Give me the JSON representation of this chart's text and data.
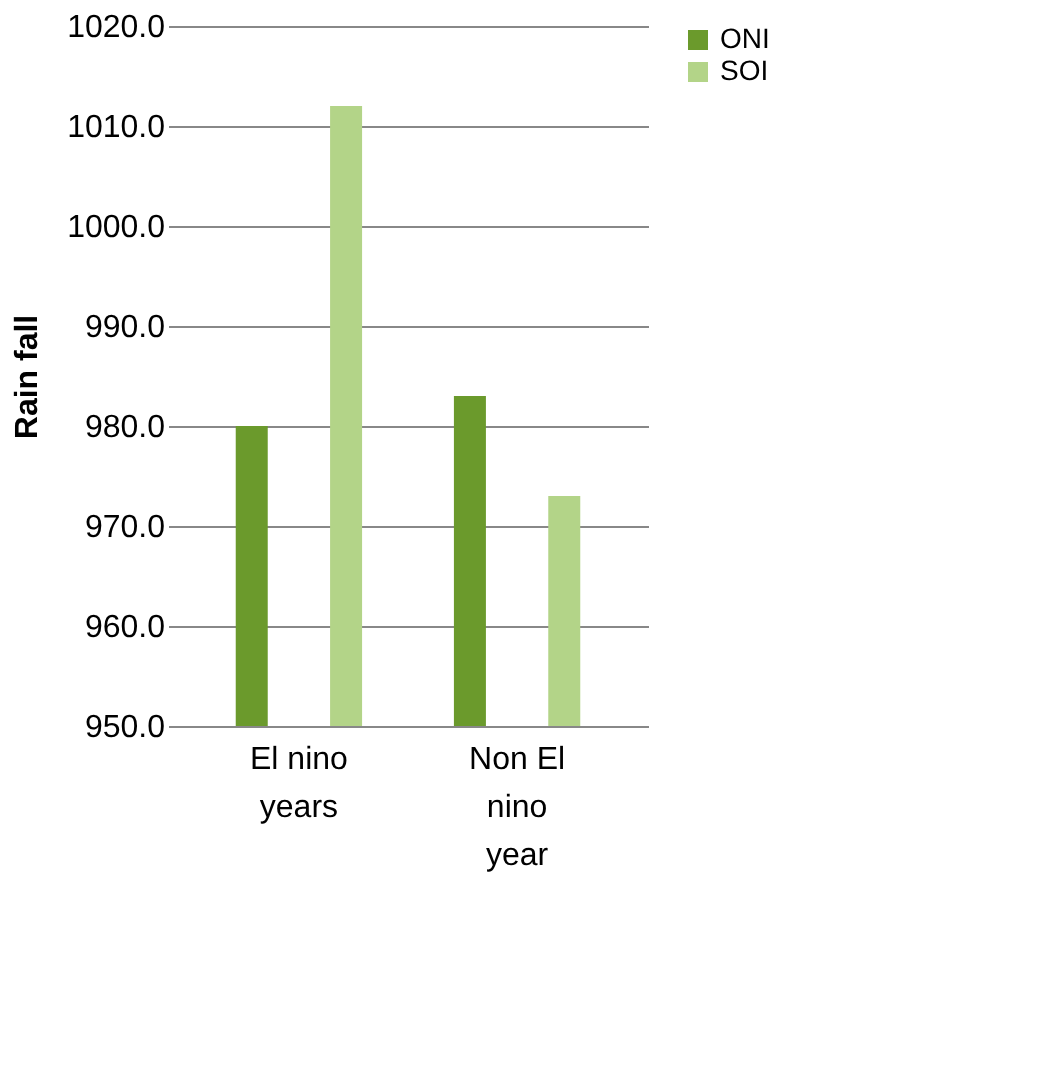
{
  "chart_data": {
    "type": "bar",
    "ylabel": "Rain fall",
    "categories": [
      "El nino years",
      "Non El nino year"
    ],
    "series": [
      {
        "name": "ONI",
        "color": "#6b9a2c",
        "values": [
          980,
          983
        ]
      },
      {
        "name": "SOI",
        "color": "#b3d488",
        "values": [
          1012,
          973
        ]
      }
    ],
    "ylim": [
      950,
      1020
    ],
    "yticks": [
      {
        "value": 950,
        "label": "950.0"
      },
      {
        "value": 960,
        "label": "960.0"
      },
      {
        "value": 970,
        "label": "970.0"
      },
      {
        "value": 980,
        "label": "980.0"
      },
      {
        "value": 990,
        "label": "990.0"
      },
      {
        "value": 1000,
        "label": "1000.0"
      },
      {
        "value": 1010,
        "label": "1010.0"
      },
      {
        "value": 1020,
        "label": "1020.0"
      }
    ],
    "grid": "y",
    "legend": "right"
  }
}
